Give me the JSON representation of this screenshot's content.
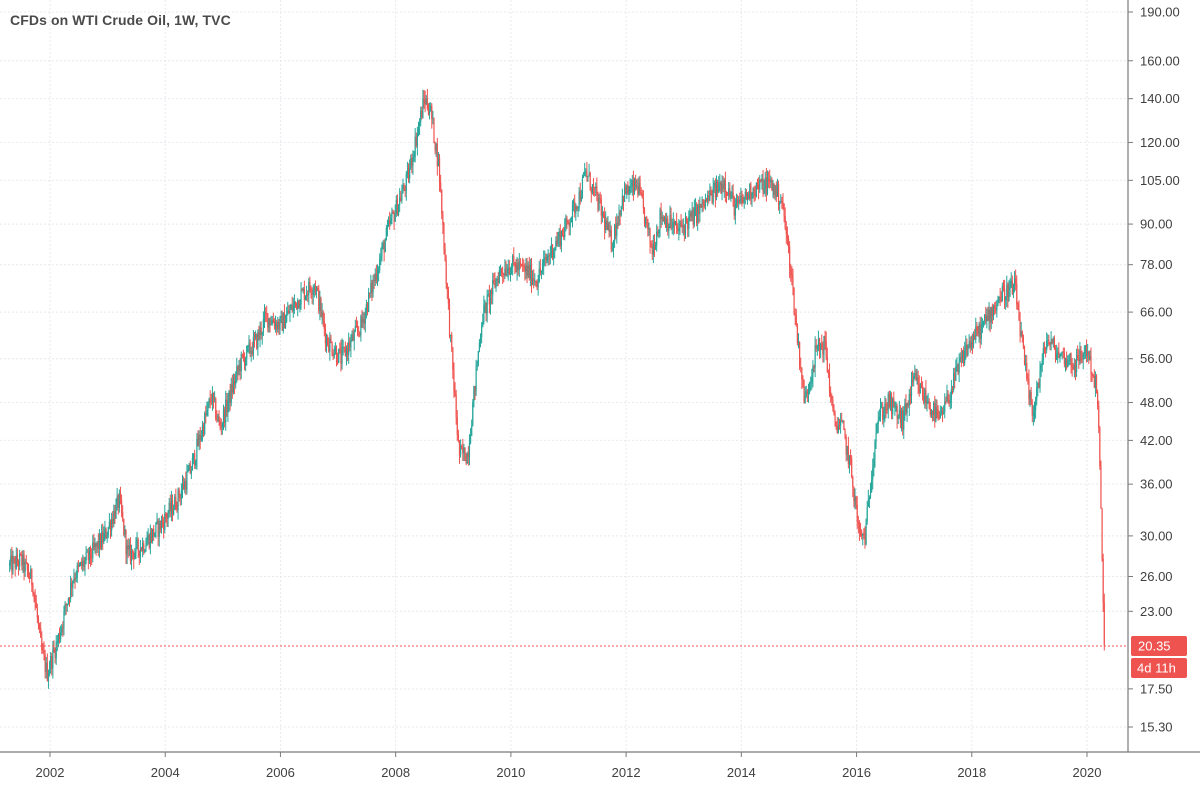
{
  "title": "CFDs on WTI Crude Oil, 1W, TVC",
  "colors": {
    "up": "#26a69a",
    "down": "#ef5350",
    "badge": "#ef5350",
    "grid": "#e6e9ee",
    "axis": "#7a7a7a"
  },
  "chart_data": {
    "type": "line",
    "title": "CFDs on WTI Crude Oil, 1W, TVC",
    "y_scale": "log",
    "ylim": [
      13.5,
      190
    ],
    "xlim": [
      2001.3,
      2020.75
    ],
    "y_ticks": [
      "190.00",
      "160.00",
      "140.00",
      "120.00",
      "105.00",
      "90.00",
      "78.00",
      "66.00",
      "56.00",
      "48.00",
      "42.00",
      "36.00",
      "30.00",
      "26.00",
      "23.00",
      "17.50",
      "15.30"
    ],
    "x_ticks": [
      "2002",
      "2004",
      "2006",
      "2008",
      "2010",
      "2012",
      "2014",
      "2016",
      "2018",
      "2020"
    ],
    "last_price": 20.35,
    "last_price_label": "20.35",
    "countdown_label": "4d 11h",
    "series": [
      {
        "x": [
          2001.3,
          2001.5,
          2001.7,
          2001.85,
          2001.95,
          2002.15,
          2002.4,
          2002.7,
          2002.95,
          2003.2,
          2003.35,
          2003.6,
          2003.9,
          2004.2,
          2004.45,
          2004.8,
          2004.95,
          2005.3,
          2005.6,
          2005.75,
          2006.0,
          2006.35,
          2006.6,
          2006.8,
          2007.05,
          2007.4,
          2007.7,
          2007.9,
          2008.2,
          2008.5,
          2008.6,
          2008.75,
          2008.95,
          2009.1,
          2009.25,
          2009.5,
          2009.8,
          2010.0,
          2010.3,
          2010.45,
          2010.7,
          2010.95,
          2011.2,
          2011.3,
          2011.5,
          2011.75,
          2011.95,
          2012.2,
          2012.45,
          2012.6,
          2012.9,
          2013.2,
          2013.5,
          2013.7,
          2013.9,
          2014.2,
          2014.5,
          2014.7,
          2014.85,
          2014.95,
          2015.1,
          2015.3,
          2015.45,
          2015.6,
          2015.75,
          2015.9,
          2016.05,
          2016.15,
          2016.35,
          2016.55,
          2016.8,
          2017.0,
          2017.3,
          2017.45,
          2017.7,
          2017.9,
          2018.2,
          2018.5,
          2018.75,
          2018.95,
          2019.05,
          2019.3,
          2019.5,
          2019.8,
          2020.0,
          2020.1,
          2020.17,
          2020.22,
          2020.27,
          2020.3
        ],
        "values": [
          27,
          27.5,
          25.5,
          20,
          18.5,
          21,
          26,
          28,
          30,
          34,
          28,
          29,
          31,
          34,
          38,
          49,
          44,
          55,
          60,
          65,
          63,
          70,
          73,
          60,
          56,
          63,
          78,
          90,
          105,
          140,
          135,
          110,
          60,
          40,
          40,
          65,
          76,
          78,
          76,
          74,
          82,
          89,
          100,
          108,
          98,
          84,
          100,
          103,
          82,
          93,
          88,
          93,
          100,
          105,
          95,
          102,
          104,
          98,
          78,
          63,
          48,
          58,
          59,
          45,
          44,
          38,
          30,
          30,
          45,
          48,
          45,
          52,
          47,
          45,
          52,
          58,
          63,
          70,
          72,
          52,
          46,
          60,
          57,
          55,
          58,
          53,
          50,
          40,
          25,
          20.35
        ]
      }
    ]
  }
}
